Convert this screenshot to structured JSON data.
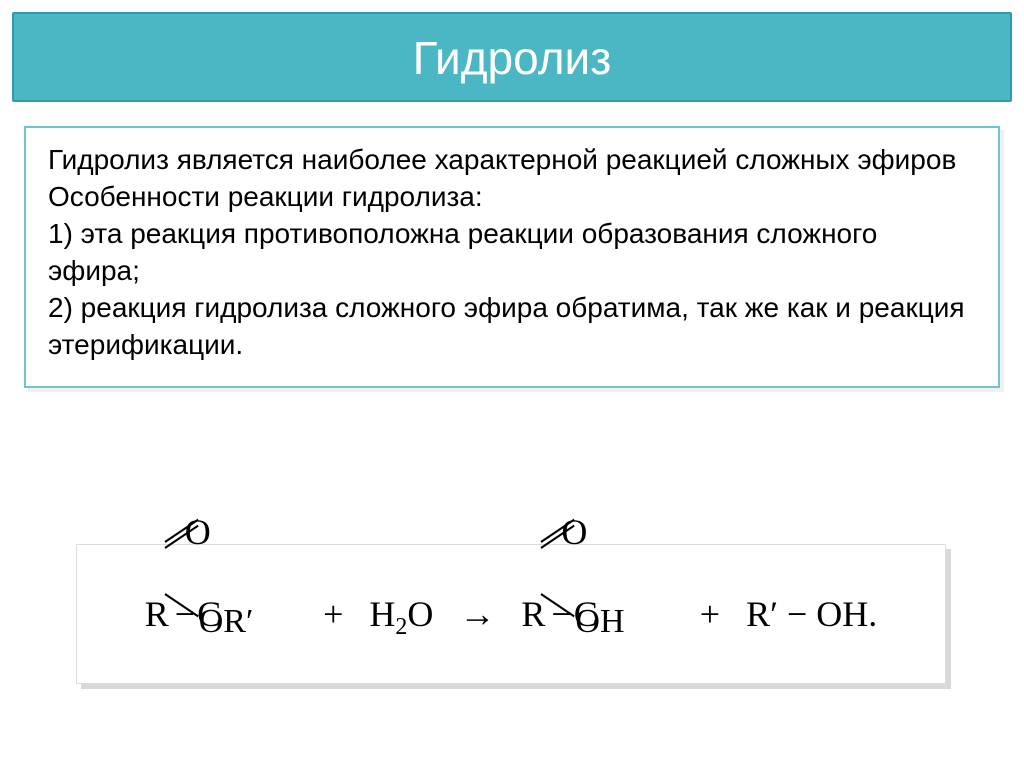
{
  "colors": {
    "band_bg": "#4bb6c4",
    "band_border": "#2f9cad",
    "card_border": "#6cc5d0",
    "text": "#000000",
    "title": "#ffffff"
  },
  "title": "Гидролиз",
  "body": {
    "line1": "Гидролиз является наиболее характерной реакцией сложных эфиров",
    "line2": " Особенности реакции гидролиза:",
    "line3": "1) эта реакция противоположна реакции образования сложного эфира;",
    "line4": "2) реакция гидролиза сложного эфира обратима, так же как и реакция этерификации."
  },
  "formula": {
    "reagent1_R": "R",
    "reagent1_C": "C",
    "reagent1_O_top": "O",
    "reagent1_OR": "OR′",
    "plus1": "+",
    "water_H": "H",
    "water_2": "2",
    "water_O": "O",
    "arrow": "→",
    "product1_R": "R",
    "product1_C": "C",
    "product1_O_top": "O",
    "product1_OH": "OH",
    "plus2": "+",
    "product2": "R′ − OH.",
    "bond": "−"
  },
  "typography": {
    "title_fontsize": 46,
    "body_fontsize": 28,
    "formula_fontsize": 36
  }
}
